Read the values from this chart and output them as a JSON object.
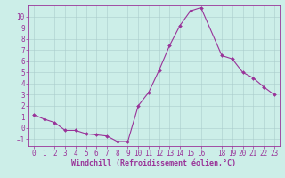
{
  "x": [
    0,
    1,
    2,
    3,
    4,
    5,
    6,
    7,
    8,
    9,
    10,
    11,
    12,
    13,
    14,
    15,
    16,
    18,
    19,
    20,
    21,
    22,
    23
  ],
  "y": [
    1.2,
    0.8,
    0.5,
    -0.2,
    -0.2,
    -0.5,
    -0.6,
    -0.7,
    -1.2,
    -1.2,
    2.0,
    3.2,
    5.2,
    7.4,
    9.2,
    10.5,
    10.8,
    6.5,
    6.2,
    5.0,
    4.5,
    3.7,
    3.0
  ],
  "line_color": "#993399",
  "marker_color": "#993399",
  "background_color": "#cceee8",
  "grid_color": "#aacccc",
  "xlabel": "Windchill (Refroidissement éolien,°C)",
  "xlabel_color": "#993399",
  "tick_color": "#993399",
  "ylim": [
    -1.6,
    11.0
  ],
  "xlim": [
    -0.5,
    23.5
  ],
  "xticks": [
    0,
    1,
    2,
    3,
    4,
    5,
    6,
    7,
    8,
    9,
    10,
    11,
    12,
    13,
    14,
    15,
    16,
    18,
    19,
    20,
    21,
    22,
    23
  ],
  "yticks": [
    -1,
    0,
    1,
    2,
    3,
    4,
    5,
    6,
    7,
    8,
    9,
    10
  ],
  "tick_fontsize": 5.5,
  "xlabel_fontsize": 6.0
}
